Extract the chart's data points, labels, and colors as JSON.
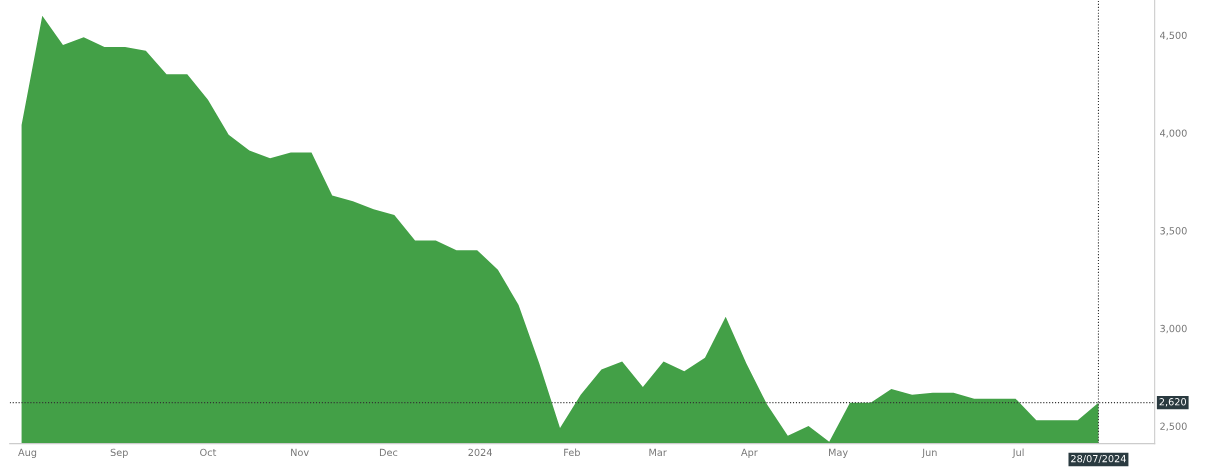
{
  "chart_data": {
    "type": "area",
    "x": [
      "2023-07-30",
      "2023-08-06",
      "2023-08-13",
      "2023-08-20",
      "2023-08-27",
      "2023-09-03",
      "2023-09-10",
      "2023-09-17",
      "2023-09-24",
      "2023-10-01",
      "2023-10-08",
      "2023-10-15",
      "2023-10-22",
      "2023-10-29",
      "2023-11-05",
      "2023-11-12",
      "2023-11-19",
      "2023-11-26",
      "2023-12-03",
      "2023-12-10",
      "2023-12-17",
      "2023-12-24",
      "2023-12-31",
      "2024-01-07",
      "2024-01-14",
      "2024-01-21",
      "2024-01-28",
      "2024-02-04",
      "2024-02-11",
      "2024-02-18",
      "2024-02-25",
      "2024-03-03",
      "2024-03-10",
      "2024-03-17",
      "2024-03-24",
      "2024-03-31",
      "2024-04-07",
      "2024-04-14",
      "2024-04-21",
      "2024-04-28",
      "2024-05-05",
      "2024-05-12",
      "2024-05-19",
      "2024-05-26",
      "2024-06-02",
      "2024-06-09",
      "2024-06-16",
      "2024-06-23",
      "2024-06-30",
      "2024-07-07",
      "2024-07-14",
      "2024-07-21",
      "2024-07-28"
    ],
    "series": [
      {
        "color": "#43a047",
        "values": [
          4040,
          4600,
          4450,
          4490,
          4440,
          4440,
          4420,
          4300,
          4300,
          4170,
          3990,
          3910,
          3870,
          3900,
          3900,
          3680,
          3650,
          3610,
          3580,
          3450,
          3450,
          3400,
          3400,
          3300,
          3120,
          2820,
          2490,
          2660,
          2790,
          2830,
          2700,
          2830,
          2780,
          2850,
          3060,
          2820,
          2610,
          2450,
          2500,
          2420,
          2620,
          2620,
          2690,
          2660,
          2670,
          2670,
          2640,
          2640,
          2640,
          2530,
          2530,
          2530,
          2620
        ]
      }
    ],
    "xlim": [
      "2023-07-26",
      "2024-08-16"
    ],
    "ylim": [
      2410,
      4680
    ],
    "yticks": [
      {
        "value": 2500,
        "label": "2,500"
      },
      {
        "value": 3000,
        "label": "3,000"
      },
      {
        "value": 3500,
        "label": "3,500"
      },
      {
        "value": 4000,
        "label": "4,000"
      },
      {
        "value": 4500,
        "label": "4,500"
      }
    ],
    "xticks": [
      {
        "value": "2023-08-01",
        "label": "Aug"
      },
      {
        "value": "2023-09-01",
        "label": "Sep"
      },
      {
        "value": "2023-10-01",
        "label": "Oct"
      },
      {
        "value": "2023-11-01",
        "label": "Nov"
      },
      {
        "value": "2023-12-01",
        "label": "Dec"
      },
      {
        "value": "2024-01-01",
        "label": "2024"
      },
      {
        "value": "2024-02-01",
        "label": "Feb"
      },
      {
        "value": "2024-03-01",
        "label": "Mar"
      },
      {
        "value": "2024-04-01",
        "label": "Apr"
      },
      {
        "value": "2024-05-01",
        "label": "May"
      },
      {
        "value": "2024-06-01",
        "label": "Jun"
      },
      {
        "value": "2024-07-01",
        "label": "Jul"
      }
    ],
    "ref_lines": [
      {
        "axis": "y",
        "value": 2620,
        "label": "2,620",
        "color": "#333333",
        "line_style": "dotted"
      },
      {
        "axis": "x",
        "value": "2024-07-28",
        "label": "28/07/2024",
        "color": "#333333",
        "line_style": "dotted"
      }
    ],
    "grid": false,
    "legend": false
  }
}
